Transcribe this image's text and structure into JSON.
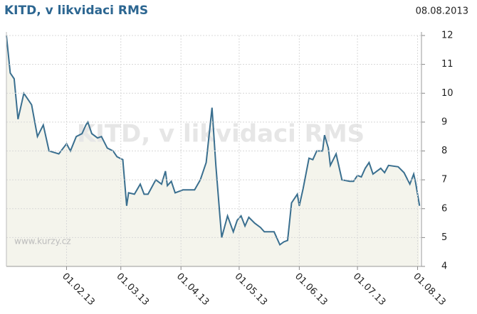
{
  "chart_data": {
    "type": "line",
    "title": "KITD, v likvidaci RMS",
    "date": "08.08.2013",
    "source": "www.kurzy.cz",
    "x": [
      "01.01.13",
      "03.01.13",
      "05.01.13",
      "07.01.13",
      "10.01.13",
      "14.01.13",
      "17.01.13",
      "20.01.13",
      "23.01.13",
      "28.01.13",
      "01.02.13",
      "03.02.13",
      "06.02.13",
      "09.02.13",
      "11.02.13",
      "12.02.13",
      "14.02.13",
      "17.02.13",
      "19.02.13",
      "22.02.13",
      "25.02.13",
      "27.02.13",
      "02.03.13",
      "04.03.13",
      "05.03.13",
      "08.03.13",
      "11.03.13",
      "13.03.13",
      "15.03.13",
      "19.03.13",
      "22.03.13",
      "24.03.13",
      "25.03.13",
      "27.03.13",
      "29.03.13",
      "02.04.13",
      "08.04.13",
      "11.04.13",
      "14.04.13",
      "17.04.13",
      "19.04.13",
      "21.04.13",
      "22.04.13",
      "25.04.13",
      "28.04.13",
      "30.04.13",
      "02.05.13",
      "04.05.13",
      "06.05.13",
      "09.05.13",
      "12.05.13",
      "14.05.13",
      "19.05.13",
      "22.05.13",
      "24.05.13",
      "26.05.13",
      "28.05.13",
      "31.05.13",
      "01.06.13",
      "03.06.13",
      "06.06.13",
      "08.06.13",
      "10.06.13",
      "13.06.13",
      "14.06.13",
      "16.06.13",
      "17.06.13",
      "20.06.13",
      "23.06.13",
      "27.06.13",
      "29.06.13",
      "01.07.13",
      "03.07.13",
      "05.07.13",
      "07.07.13",
      "09.07.13",
      "13.07.13",
      "15.07.13",
      "17.07.13",
      "22.07.13",
      "25.07.13",
      "28.07.13",
      "30.07.13",
      "31.07.13",
      "02.08.13"
    ],
    "series": [
      {
        "name": "KITD, v likvidaci RMS",
        "color": "#3a6f8f",
        "values": [
          12.0,
          10.7,
          10.5,
          9.1,
          10.0,
          9.6,
          8.5,
          8.9,
          8.0,
          7.9,
          8.25,
          8.0,
          8.5,
          8.6,
          8.9,
          9.0,
          8.6,
          8.45,
          8.5,
          8.1,
          8.0,
          7.8,
          7.7,
          6.1,
          6.55,
          6.5,
          6.85,
          6.5,
          6.5,
          7.0,
          6.85,
          7.3,
          6.8,
          6.95,
          6.55,
          6.65,
          6.65,
          7.0,
          7.6,
          9.5,
          7.5,
          5.8,
          5.0,
          5.75,
          5.2,
          5.6,
          5.75,
          5.4,
          5.7,
          5.5,
          5.35,
          5.2,
          5.2,
          4.75,
          4.85,
          4.9,
          6.2,
          6.5,
          6.1,
          6.7,
          7.75,
          7.7,
          8.0,
          8.0,
          8.55,
          8.1,
          7.5,
          7.9,
          7.0,
          6.95,
          6.95,
          7.15,
          7.1,
          7.4,
          7.6,
          7.2,
          7.4,
          7.25,
          7.5,
          7.45,
          7.25,
          6.85,
          7.2,
          6.9,
          6.1
        ]
      }
    ],
    "xlim": [
      "01.01.13",
      "03.08.13"
    ],
    "xticks": [
      "01.02.13",
      "01.03.13",
      "01.04.13",
      "01.05.13",
      "01.06.13",
      "01.07.13",
      "01.08.13"
    ],
    "ylim": [
      4,
      12
    ],
    "yticks": [
      4,
      5,
      6,
      7,
      8,
      9,
      10,
      11,
      12
    ],
    "grid": true,
    "fill": "#f4f4ec"
  }
}
